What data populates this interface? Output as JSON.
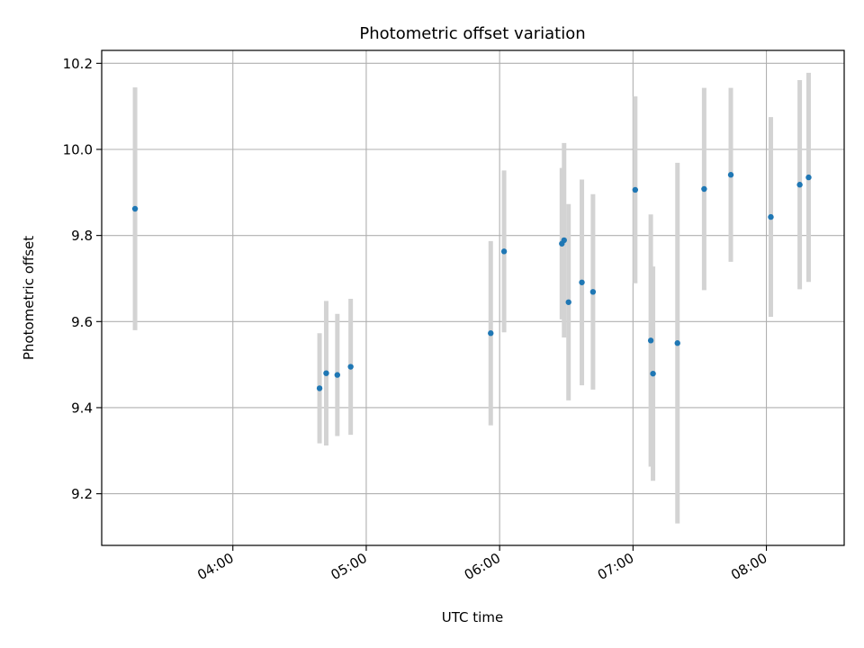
{
  "chart_data": {
    "type": "scatter",
    "title": "Photometric offset variation",
    "xlabel": "UTC time",
    "ylabel": "Photometric offset",
    "x_scale": "time",
    "xlim": [
      "03:01",
      "08:35"
    ],
    "ylim": [
      9.08,
      10.23
    ],
    "x_ticks": [
      "04:00",
      "05:00",
      "06:00",
      "07:00",
      "08:00"
    ],
    "y_ticks": [
      9.2,
      9.4,
      9.6,
      9.8,
      10.0,
      10.2
    ],
    "grid": true,
    "colors": {
      "point": "#1f77b4",
      "errorbar": "#d3d3d3",
      "grid": "#b0b0b0"
    },
    "points": [
      {
        "x": "03:16",
        "y": 9.862,
        "yerr": 0.282
      },
      {
        "x": "04:39",
        "y": 9.445,
        "yerr": 0.128
      },
      {
        "x": "04:42",
        "y": 9.48,
        "yerr": 0.168
      },
      {
        "x": "04:47",
        "y": 9.476,
        "yerr": 0.142
      },
      {
        "x": "04:53",
        "y": 9.495,
        "yerr": 0.158
      },
      {
        "x": "05:56",
        "y": 9.573,
        "yerr": 0.214
      },
      {
        "x": "06:02",
        "y": 9.763,
        "yerr": 0.188
      },
      {
        "x": "06:28",
        "y": 9.781,
        "yerr": 0.176
      },
      {
        "x": "06:29",
        "y": 9.789,
        "yerr": 0.226
      },
      {
        "x": "06:31",
        "y": 9.645,
        "yerr": 0.228
      },
      {
        "x": "06:37",
        "y": 9.691,
        "yerr": 0.239
      },
      {
        "x": "06:42",
        "y": 9.669,
        "yerr": 0.227
      },
      {
        "x": "07:01",
        "y": 9.906,
        "yerr": 0.217
      },
      {
        "x": "07:08",
        "y": 9.556,
        "yerr": 0.293
      },
      {
        "x": "07:09",
        "y": 9.479,
        "yerr": 0.249
      },
      {
        "x": "07:20",
        "y": 9.55,
        "yerr": 0.419
      },
      {
        "x": "07:32",
        "y": 9.908,
        "yerr": 0.235
      },
      {
        "x": "07:44",
        "y": 9.941,
        "yerr": 0.202
      },
      {
        "x": "08:02",
        "y": 9.843,
        "yerr": 0.232
      },
      {
        "x": "08:15",
        "y": 9.918,
        "yerr": 0.243
      },
      {
        "x": "08:19",
        "y": 9.935,
        "yerr": 0.243
      }
    ]
  }
}
